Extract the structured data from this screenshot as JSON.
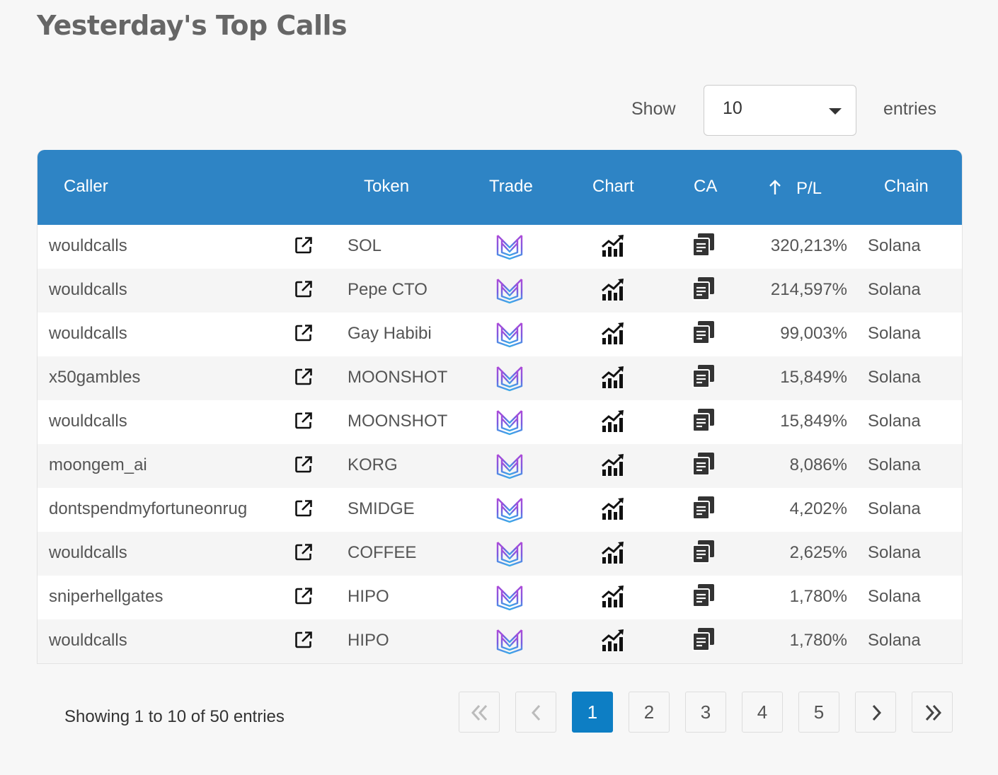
{
  "page": {
    "title": "Yesterday's Top Calls"
  },
  "length": {
    "show_label": "Show",
    "value": "10",
    "entries_label": "entries"
  },
  "table": {
    "headers": {
      "caller": "Caller",
      "token": "Token",
      "trade": "Trade",
      "chart": "Chart",
      "ca": "CA",
      "pl": "P/L",
      "chain": "Chain"
    },
    "sort_icon": "arrow-up-icon",
    "rows": [
      {
        "caller": "wouldcalls",
        "token": "SOL",
        "pl": "320,213%",
        "chain": "Solana"
      },
      {
        "caller": "wouldcalls",
        "token": "Pepe CTO",
        "pl": "214,597%",
        "chain": "Solana"
      },
      {
        "caller": "wouldcalls",
        "token": "Gay Habibi",
        "pl": "99,003%",
        "chain": "Solana"
      },
      {
        "caller": "x50gambles",
        "token": "MOONSHOT",
        "pl": "15,849%",
        "chain": "Solana"
      },
      {
        "caller": "wouldcalls",
        "token": "MOONSHOT",
        "pl": "15,849%",
        "chain": "Solana"
      },
      {
        "caller": "moongem_ai",
        "token": "KORG",
        "pl": "8,086%",
        "chain": "Solana"
      },
      {
        "caller": "dontspendmyfortuneonrug",
        "token": "SMIDGE",
        "pl": "4,202%",
        "chain": "Solana"
      },
      {
        "caller": "wouldcalls",
        "token": "COFFEE",
        "pl": "2,625%",
        "chain": "Solana"
      },
      {
        "caller": "sniperhellgates",
        "token": "HIPO",
        "pl": "1,780%",
        "chain": "Solana"
      },
      {
        "caller": "wouldcalls",
        "token": "HIPO",
        "pl": "1,780%",
        "chain": "Solana"
      }
    ]
  },
  "footer": {
    "info": "Showing 1 to 10 of 50 entries",
    "pages": [
      "1",
      "2",
      "3",
      "4",
      "5"
    ],
    "active_page": "1"
  },
  "colors": {
    "header_bg": "#2e84c5",
    "active_page": "#0d7ec4"
  }
}
